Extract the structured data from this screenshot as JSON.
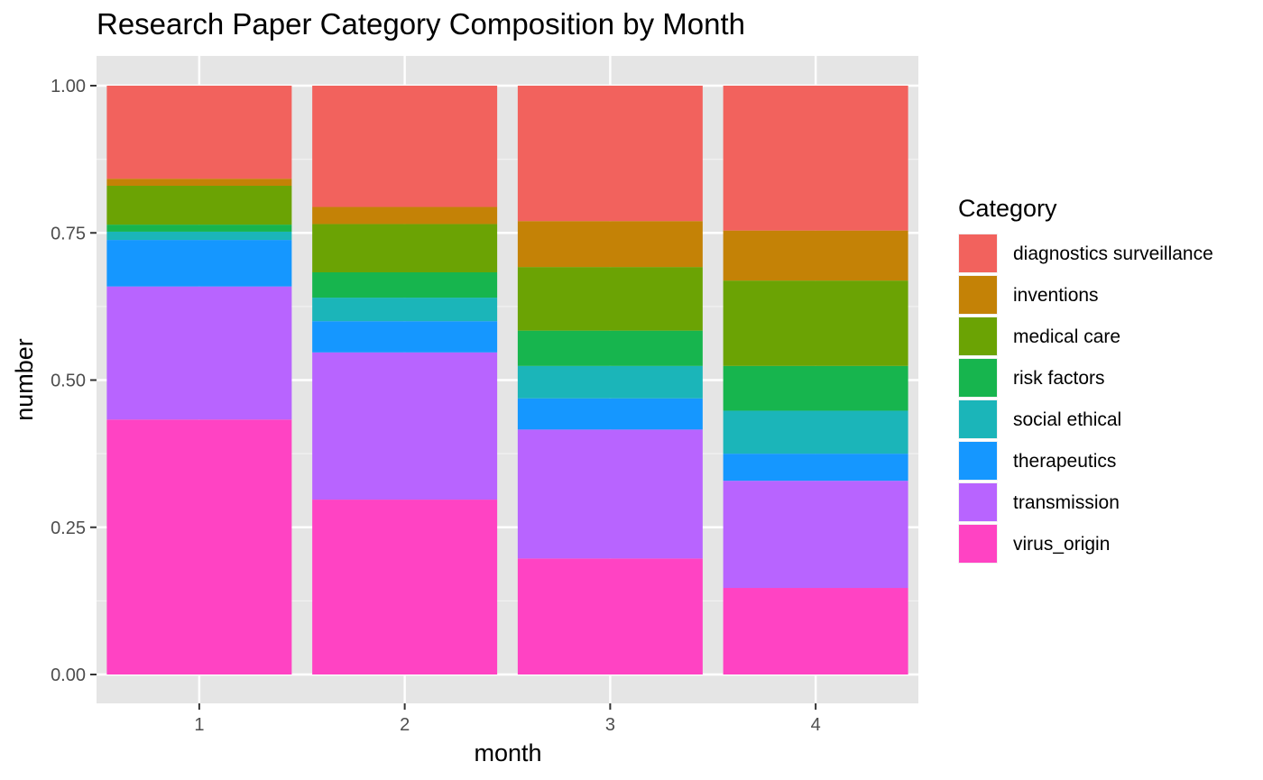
{
  "chart_data": {
    "type": "bar",
    "stacked": true,
    "normalized": true,
    "title": "Research Paper Category Composition by Month",
    "xlabel": "month",
    "ylabel": "number",
    "categories": [
      "1",
      "2",
      "3",
      "4"
    ],
    "ylim": [
      0,
      1
    ],
    "yticks": [
      "0.00",
      "0.25",
      "0.50",
      "0.75",
      "1.00"
    ],
    "grid": true,
    "legend": {
      "title": "Category",
      "placement": "right"
    },
    "series": [
      {
        "name": "virus_origin",
        "color": "#FF43C3",
        "values": [
          0.433,
          0.297,
          0.197,
          0.147
        ]
      },
      {
        "name": "transmission",
        "color": "#B864FF",
        "values": [
          0.226,
          0.25,
          0.219,
          0.182
        ]
      },
      {
        "name": "therapeutics",
        "color": "#1597FF",
        "values": [
          0.079,
          0.053,
          0.053,
          0.046
        ]
      },
      {
        "name": "social ethical",
        "color": "#1BB5B9",
        "values": [
          0.014,
          0.04,
          0.055,
          0.073
        ]
      },
      {
        "name": "risk factors",
        "color": "#17B54E",
        "values": [
          0.012,
          0.043,
          0.06,
          0.076
        ]
      },
      {
        "name": "medical care",
        "color": "#6BA304",
        "values": [
          0.066,
          0.082,
          0.108,
          0.145
        ]
      },
      {
        "name": "inventions",
        "color": "#C48206",
        "values": [
          0.012,
          0.029,
          0.078,
          0.085
        ]
      },
      {
        "name": "diagnostics surveillance",
        "color": "#F2625D",
        "values": [
          0.158,
          0.206,
          0.23,
          0.246
        ]
      }
    ]
  },
  "colors": {
    "panel_background": "#E5E5E5",
    "grid_major": "#FFFFFF",
    "grid_minor": "#F2F2F2"
  }
}
